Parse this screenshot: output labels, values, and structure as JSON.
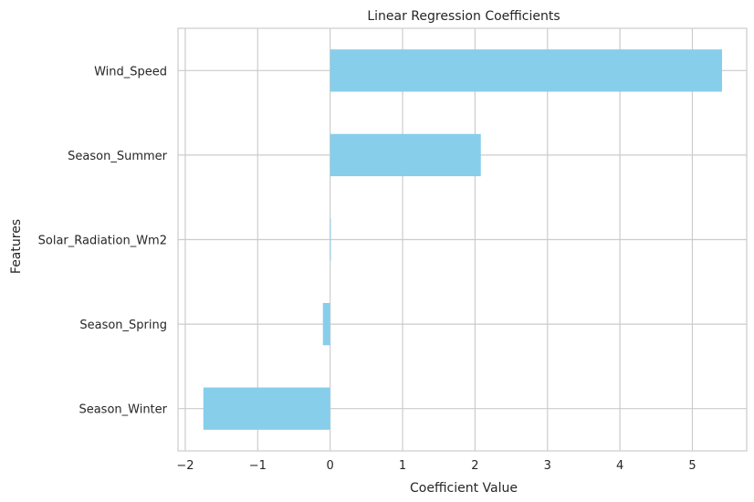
{
  "chart_data": {
    "type": "bar",
    "orientation": "horizontal",
    "title": "Linear Regression Coefficients",
    "xlabel": "Coefficient Value",
    "ylabel": "Features",
    "categories": [
      "Wind_Speed",
      "Season_Summer",
      "Solar_Radiation_Wm2",
      "Season_Spring",
      "Season_Winter"
    ],
    "values": [
      5.41,
      2.08,
      0.001,
      -0.1,
      -1.75
    ],
    "xlim": [
      -2.1,
      5.75
    ],
    "xticks": [
      -2,
      -1,
      0,
      1,
      2,
      3,
      4,
      5
    ],
    "xtick_labels": [
      "−2",
      "−1",
      "0",
      "1",
      "2",
      "3",
      "4",
      "5"
    ],
    "grid": true,
    "bar_color": "#87CEEB",
    "style": "whitegrid"
  }
}
